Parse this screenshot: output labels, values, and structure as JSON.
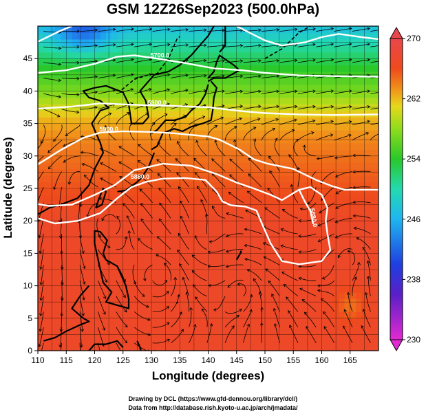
{
  "title": "GSM 12Z26Sep2023 (500.0hPa)",
  "x_axis": {
    "label": "Longitude (degrees)",
    "ticks": [
      110,
      115,
      120,
      125,
      130,
      135,
      140,
      145,
      150,
      155,
      160,
      165
    ],
    "range": [
      110,
      170
    ]
  },
  "y_axis": {
    "label": "Latitude  (degrees)",
    "ticks": [
      0,
      5,
      10,
      15,
      20,
      25,
      30,
      35,
      40,
      45
    ],
    "range": [
      0,
      50
    ]
  },
  "colorbar": {
    "min": 230,
    "max": 270,
    "ticks": [
      230,
      238,
      246,
      254,
      262,
      270
    ],
    "stops": [
      {
        "value": 230,
        "color": "#e22ad2"
      },
      {
        "value": 236,
        "color": "#5a1fc7"
      },
      {
        "value": 240,
        "color": "#1f3fe0"
      },
      {
        "value": 246,
        "color": "#1fb5f0"
      },
      {
        "value": 250,
        "color": "#24d9b0"
      },
      {
        "value": 254,
        "color": "#2ac82a"
      },
      {
        "value": 258,
        "color": "#8fdc1c"
      },
      {
        "value": 261,
        "color": "#e6d81b"
      },
      {
        "value": 263,
        "color": "#f19a1a"
      },
      {
        "value": 266,
        "color": "#ef4a1c"
      },
      {
        "value": 270,
        "color": "#e8474c"
      }
    ]
  },
  "contours": [
    {
      "label": "5700.0"
    },
    {
      "label": "5800.0"
    },
    {
      "label": "5900.0"
    },
    {
      "label": "5880.0"
    },
    {
      "label": "5880.0"
    }
  ],
  "credits": {
    "line1": "Drawing by DCL (https://www.gfd-dennou.org/library/dcl/)",
    "line2": "Data from http://database.rish.kyoto-u.ac.jp/arch/jmadata/"
  }
}
